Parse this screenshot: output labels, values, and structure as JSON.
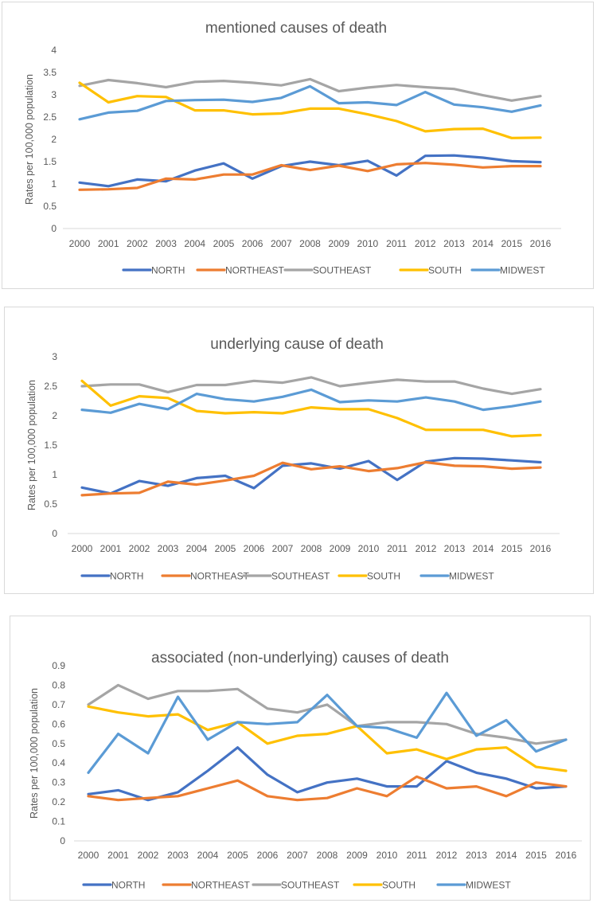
{
  "chart_data": [
    {
      "type": "line",
      "title": "mentioned causes of death",
      "xlabel": "",
      "ylabel": "Rates per 100,000 population",
      "x": [
        "2000",
        "2001",
        "2002",
        "2003",
        "2004",
        "2005",
        "2006",
        "2007",
        "2008",
        "2009",
        "2010",
        "2011",
        "2012",
        "2013",
        "2014",
        "2015",
        "2016"
      ],
      "ylim": [
        0,
        4
      ],
      "yticks": [
        "0",
        "0.5",
        "1",
        "1.5",
        "2",
        "2.5",
        "3",
        "3.5",
        "4"
      ],
      "grid": false,
      "legend": "bottom",
      "series": [
        {
          "name": "NORTH",
          "color": "#4472c4",
          "values": [
            1.03,
            0.95,
            1.1,
            1.06,
            1.3,
            1.46,
            1.12,
            1.4,
            1.5,
            1.42,
            1.52,
            1.19,
            1.63,
            1.64,
            1.59,
            1.51,
            1.49
          ]
        },
        {
          "name": "NORTHEAST",
          "color": "#ed7d31",
          "values": [
            0.87,
            0.88,
            0.91,
            1.12,
            1.1,
            1.21,
            1.21,
            1.42,
            1.31,
            1.41,
            1.29,
            1.44,
            1.47,
            1.43,
            1.37,
            1.4,
            1.4
          ]
        },
        {
          "name": "SOUTHEAST",
          "color": "#a5a5a5",
          "values": [
            3.2,
            3.33,
            3.26,
            3.17,
            3.29,
            3.31,
            3.27,
            3.21,
            3.35,
            3.08,
            3.16,
            3.22,
            3.17,
            3.13,
            2.99,
            2.87,
            2.97
          ]
        },
        {
          "name": "SOUTH",
          "color": "#ffc000",
          "values": [
            3.27,
            2.83,
            2.97,
            2.95,
            2.65,
            2.65,
            2.56,
            2.58,
            2.69,
            2.69,
            2.56,
            2.41,
            2.18,
            2.23,
            2.24,
            2.03,
            2.04
          ]
        },
        {
          "name": "MIDWEST",
          "color": "#5b9bd5",
          "values": [
            2.45,
            2.6,
            2.64,
            2.86,
            2.88,
            2.89,
            2.84,
            2.93,
            3.19,
            2.81,
            2.83,
            2.77,
            3.06,
            2.78,
            2.72,
            2.62,
            2.76
          ]
        }
      ]
    },
    {
      "type": "line",
      "title": "underlying cause of death",
      "xlabel": "",
      "ylabel": "Rates per 100,000 population",
      "x": [
        "2000",
        "2001",
        "2002",
        "2003",
        "2004",
        "2005",
        "2006",
        "2007",
        "2008",
        "2009",
        "2010",
        "2011",
        "2012",
        "2013",
        "2014",
        "2015",
        "2016"
      ],
      "ylim": [
        0,
        3
      ],
      "yticks": [
        "0",
        "0.5",
        "1",
        "1.5",
        "2",
        "2.5",
        "3"
      ],
      "grid": false,
      "legend": "bottom",
      "series": [
        {
          "name": "NORTH",
          "color": "#4472c4",
          "values": [
            0.78,
            0.68,
            0.89,
            0.81,
            0.94,
            0.98,
            0.77,
            1.15,
            1.19,
            1.1,
            1.23,
            0.91,
            1.22,
            1.28,
            1.27,
            1.24,
            1.21
          ]
        },
        {
          "name": "NORTHEAST",
          "color": "#ed7d31",
          "values": [
            0.65,
            0.68,
            0.69,
            0.88,
            0.83,
            0.9,
            0.98,
            1.2,
            1.09,
            1.14,
            1.06,
            1.11,
            1.21,
            1.15,
            1.14,
            1.1,
            1.12
          ]
        },
        {
          "name": "SOUTHEAST",
          "color": "#a5a5a5",
          "values": [
            2.5,
            2.53,
            2.53,
            2.4,
            2.52,
            2.52,
            2.59,
            2.56,
            2.65,
            2.5,
            2.56,
            2.61,
            2.58,
            2.58,
            2.46,
            2.37,
            2.45
          ]
        },
        {
          "name": "SOUTH",
          "color": "#ffc000",
          "values": [
            2.59,
            2.17,
            2.33,
            2.3,
            2.08,
            2.04,
            2.06,
            2.04,
            2.14,
            2.11,
            2.11,
            1.96,
            1.76,
            1.76,
            1.76,
            1.65,
            1.67
          ]
        },
        {
          "name": "MIDWEST",
          "color": "#5b9bd5",
          "values": [
            2.1,
            2.05,
            2.2,
            2.11,
            2.37,
            2.28,
            2.24,
            2.32,
            2.44,
            2.23,
            2.26,
            2.24,
            2.31,
            2.24,
            2.1,
            2.16,
            2.24
          ]
        }
      ]
    },
    {
      "type": "line",
      "title": "associated (non-underlying) causes of death",
      "xlabel": "",
      "ylabel": "Rates per 100,000 population",
      "x": [
        "2000",
        "2001",
        "2002",
        "2003",
        "2004",
        "2005",
        "2006",
        "2007",
        "2008",
        "2009",
        "2010",
        "2011",
        "2012",
        "2013",
        "2014",
        "2015",
        "2016"
      ],
      "ylim": [
        0,
        0.9
      ],
      "yticks": [
        "0",
        "0.1",
        "0.2",
        "0.3",
        "0.4",
        "0.5",
        "0.6",
        "0.7",
        "0.8",
        "0.9"
      ],
      "grid": false,
      "legend": "bottom",
      "series": [
        {
          "name": "NORTH",
          "color": "#4472c4",
          "values": [
            0.24,
            0.26,
            0.21,
            0.25,
            0.36,
            0.48,
            0.34,
            0.25,
            0.3,
            0.32,
            0.28,
            0.28,
            0.41,
            0.35,
            0.32,
            0.27,
            0.28
          ]
        },
        {
          "name": "NORTHEAST",
          "color": "#ed7d31",
          "values": [
            0.23,
            0.21,
            0.22,
            0.23,
            0.27,
            0.31,
            0.23,
            0.21,
            0.22,
            0.27,
            0.23,
            0.33,
            0.27,
            0.28,
            0.23,
            0.3,
            0.28
          ]
        },
        {
          "name": "SOUTHEAST",
          "color": "#a5a5a5",
          "values": [
            0.7,
            0.8,
            0.73,
            0.77,
            0.77,
            0.78,
            0.68,
            0.66,
            0.7,
            0.59,
            0.61,
            0.61,
            0.6,
            0.55,
            0.53,
            0.5,
            0.52
          ]
        },
        {
          "name": "SOUTH",
          "color": "#ffc000",
          "values": [
            0.69,
            0.66,
            0.64,
            0.65,
            0.57,
            0.61,
            0.5,
            0.54,
            0.55,
            0.59,
            0.45,
            0.47,
            0.42,
            0.47,
            0.48,
            0.38,
            0.36
          ]
        },
        {
          "name": "MIDWEST",
          "color": "#5b9bd5",
          "values": [
            0.35,
            0.55,
            0.45,
            0.74,
            0.52,
            0.61,
            0.6,
            0.61,
            0.75,
            0.59,
            0.58,
            0.53,
            0.76,
            0.54,
            0.62,
            0.46,
            0.52
          ]
        }
      ]
    }
  ]
}
